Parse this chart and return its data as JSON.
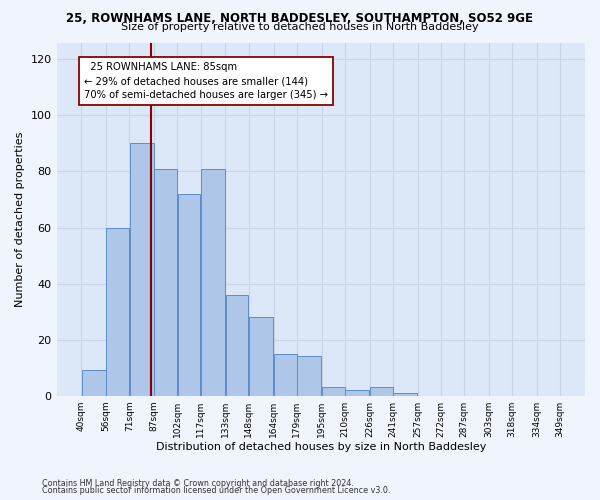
{
  "title_line1": "25, ROWNHAMS LANE, NORTH BADDESLEY, SOUTHAMPTON, SO52 9GE",
  "title_line2": "Size of property relative to detached houses in North Baddesley",
  "xlabel": "Distribution of detached houses by size in North Baddesley",
  "ylabel": "Number of detached properties",
  "bar_left_edges": [
    40,
    56,
    71,
    87,
    102,
    117,
    133,
    148,
    164,
    179,
    195,
    210,
    226,
    241,
    257,
    272,
    287,
    303,
    318,
    334
  ],
  "bar_widths": [
    16,
    15,
    16,
    15,
    15,
    16,
    15,
    16,
    15,
    16,
    15,
    16,
    15,
    16,
    15,
    15,
    16,
    15,
    16,
    15
  ],
  "bar_heights": [
    9,
    60,
    90,
    81,
    72,
    81,
    36,
    28,
    15,
    14,
    3,
    2,
    3,
    1,
    0,
    0,
    0,
    0,
    0,
    0
  ],
  "bar_color": "#aec6e8",
  "bar_edge_color": "#5b8fc9",
  "x_tick_labels": [
    "40sqm",
    "56sqm",
    "71sqm",
    "87sqm",
    "102sqm",
    "117sqm",
    "133sqm",
    "148sqm",
    "164sqm",
    "179sqm",
    "195sqm",
    "210sqm",
    "226sqm",
    "241sqm",
    "257sqm",
    "272sqm",
    "287sqm",
    "303sqm",
    "318sqm",
    "334sqm",
    "349sqm"
  ],
  "x_tick_positions": [
    40,
    56,
    71,
    87,
    102,
    117,
    133,
    148,
    164,
    179,
    195,
    210,
    226,
    241,
    257,
    272,
    287,
    303,
    318,
    334,
    349
  ],
  "ylim": [
    0,
    126
  ],
  "xlim": [
    24,
    365
  ],
  "y_ticks": [
    0,
    20,
    40,
    60,
    80,
    100,
    120
  ],
  "vline_x": 85,
  "vline_color": "#8b0000",
  "annotation_text": "  25 ROWNHAMS LANE: 85sqm  \n← 29% of detached houses are smaller (144)\n70% of semi-detached houses are larger (345) →",
  "annotation_box_color": "#ffffff",
  "annotation_box_edge_color": "#8b0000",
  "grid_color": "#c8d4e8",
  "background_color": "#dce8f8",
  "fig_background_color": "#f0f4fc",
  "footer_line1": "Contains HM Land Registry data © Crown copyright and database right 2024.",
  "footer_line2": "Contains public sector information licensed under the Open Government Licence v3.0."
}
